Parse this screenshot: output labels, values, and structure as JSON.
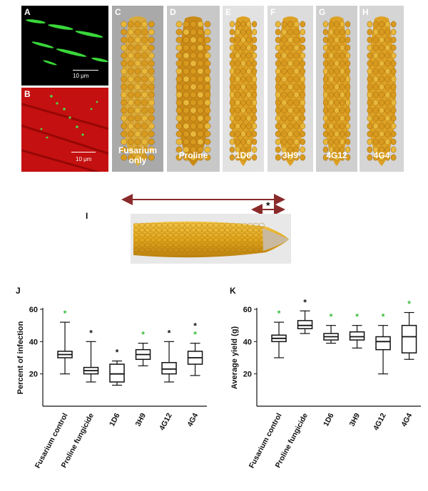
{
  "panels": {
    "A": {
      "label": "A",
      "scale": "10 μm"
    },
    "B": {
      "label": "B",
      "scale": "10 μm"
    },
    "I": {
      "label": "I",
      "marker": "*"
    }
  },
  "cobs": [
    {
      "label": "C",
      "caption": [
        "Fusarium",
        "only"
      ]
    },
    {
      "label": "D",
      "caption": [
        "Proline"
      ]
    },
    {
      "label": "E",
      "caption": [
        "1D6"
      ]
    },
    {
      "label": "F",
      "caption": [
        "3H9"
      ]
    },
    {
      "label": "G",
      "caption": [
        "4G12"
      ]
    },
    {
      "label": "H",
      "caption": [
        "4G4"
      ]
    }
  ],
  "colors": {
    "green_star": "#33bb33",
    "black_star": "#111111",
    "arrow": "#8b2a2a"
  },
  "chart_data": [
    {
      "type": "boxplot",
      "panel": "J",
      "ylabel": "Percent of infection",
      "ylim": [
        0,
        60
      ],
      "yticks": [
        20,
        40,
        60
      ],
      "categories": [
        "Fusarium control",
        "Proline fungicide",
        "1D6",
        "3H9",
        "4G12",
        "4G4"
      ],
      "boxes": [
        {
          "min": 20,
          "q1": 30,
          "median": 32,
          "q3": 34,
          "max": 52
        },
        {
          "min": 15,
          "q1": 20,
          "median": 22,
          "q3": 24,
          "max": 40
        },
        {
          "min": 13,
          "q1": 15,
          "median": 20,
          "q3": 26,
          "max": 28
        },
        {
          "min": 25,
          "q1": 29,
          "median": 32,
          "q3": 35,
          "max": 39
        },
        {
          "min": 15,
          "q1": 20,
          "median": 23,
          "q3": 27,
          "max": 40
        },
        {
          "min": 19,
          "q1": 26,
          "median": 30,
          "q3": 34,
          "max": 39
        }
      ],
      "markers": [
        [
          {
            "symbol": "*",
            "color": "green"
          }
        ],
        [
          {
            "symbol": "*",
            "color": "black"
          }
        ],
        [
          {
            "symbol": "*",
            "color": "black"
          }
        ],
        [
          {
            "symbol": "*",
            "color": "green"
          }
        ],
        [
          {
            "symbol": "*",
            "color": "black"
          }
        ],
        [
          {
            "symbol": "*",
            "color": "black"
          },
          {
            "symbol": "*",
            "color": "green"
          }
        ]
      ]
    },
    {
      "type": "boxplot",
      "panel": "K",
      "ylabel": "Average yield (g)",
      "ylim": [
        0,
        60
      ],
      "yticks": [
        20,
        40,
        60
      ],
      "categories": [
        "Fusarium control",
        "Proline fungicide",
        "1D6",
        "3H9",
        "4G12",
        "4G4"
      ],
      "boxes": [
        {
          "min": 30,
          "q1": 40,
          "median": 42,
          "q3": 44,
          "max": 52
        },
        {
          "min": 45,
          "q1": 48,
          "median": 50,
          "q3": 53,
          "max": 59
        },
        {
          "min": 39,
          "q1": 41,
          "median": 43,
          "q3": 45,
          "max": 50
        },
        {
          "min": 36,
          "q1": 41,
          "median": 43,
          "q3": 46,
          "max": 50
        },
        {
          "min": 20,
          "q1": 35,
          "median": 40,
          "q3": 43,
          "max": 50
        },
        {
          "min": 29,
          "q1": 33,
          "median": 43,
          "q3": 50,
          "max": 58
        }
      ],
      "markers": [
        [
          {
            "symbol": "*",
            "color": "green"
          }
        ],
        [
          {
            "symbol": "*",
            "color": "black"
          }
        ],
        [
          {
            "symbol": "*",
            "color": "green"
          }
        ],
        [
          {
            "symbol": "*",
            "color": "green"
          }
        ],
        [
          {
            "symbol": "*",
            "color": "green"
          }
        ],
        [
          {
            "symbol": "*",
            "color": "green"
          }
        ]
      ]
    }
  ]
}
